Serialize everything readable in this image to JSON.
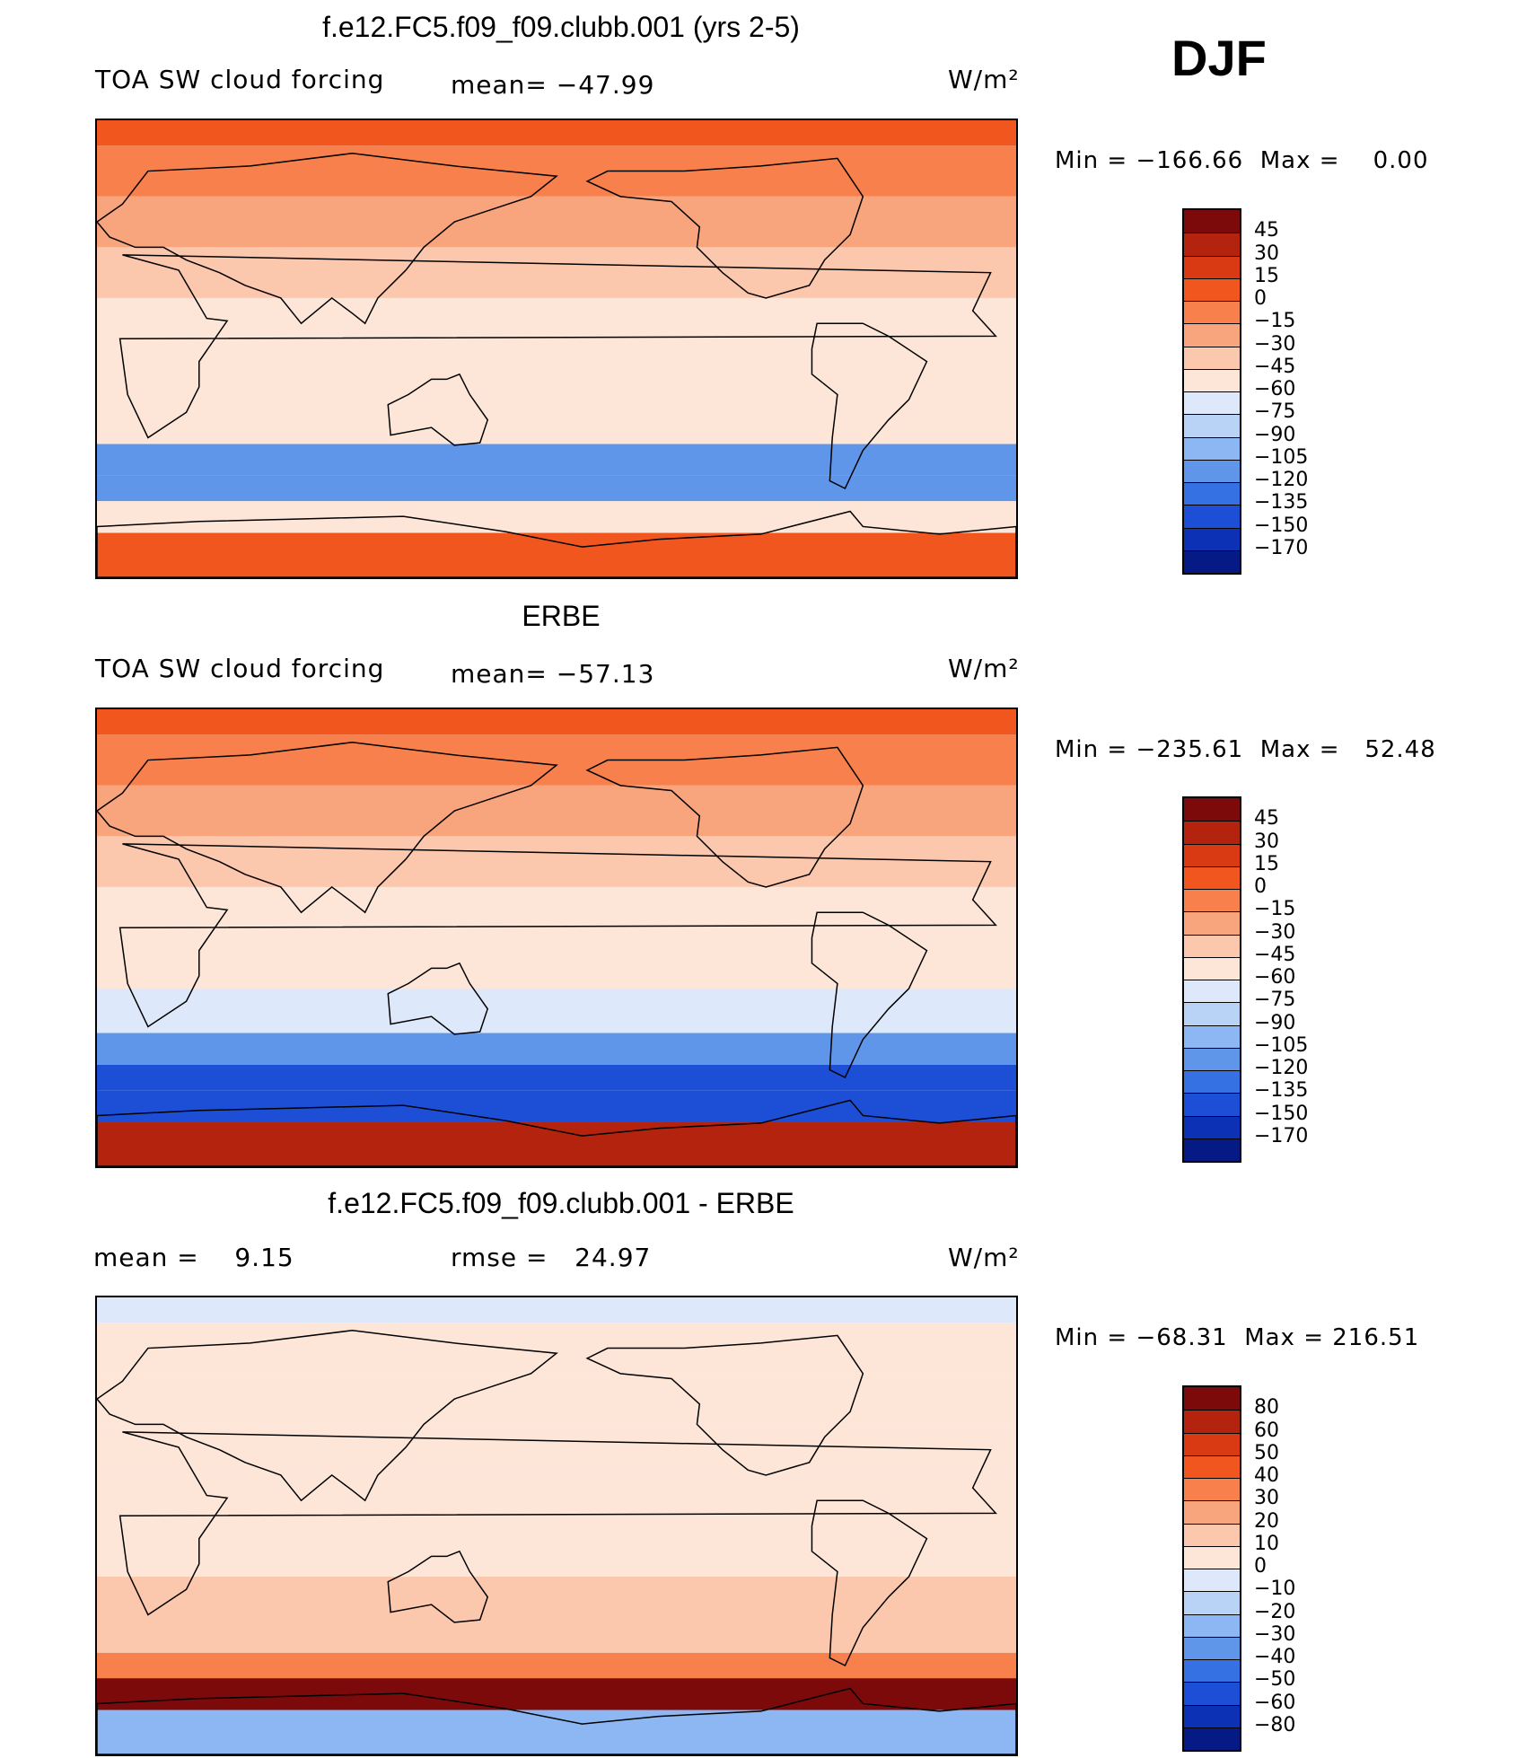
{
  "season": "DJF",
  "panels": [
    {
      "title": "f.e12.FC5.f09_f09.clubb.001 (yrs 2-5)",
      "left_label": "TOA SW cloud forcing",
      "mid_label": "mean= −47.99",
      "units": "W/m²",
      "min_max": "Min = −166.66  Max =    0.00"
    },
    {
      "title": "ERBE",
      "left_label": "TOA SW cloud forcing",
      "mid_label": "mean= −57.13",
      "units": "W/m²",
      "min_max": "Min = −235.61  Max =   52.48"
    },
    {
      "title": "f.e12.FC5.f09_f09.clubb.001 - ERBE",
      "left_label": "mean =    9.15",
      "mid_label": "rmse =   24.97",
      "units": "W/m²",
      "min_max": "Min = −68.31  Max = 216.51"
    }
  ],
  "colorbars": {
    "abs": {
      "labels": [
        "45",
        "30",
        "15",
        "0",
        "−15",
        "−30",
        "−45",
        "−60",
        "−75",
        "−90",
        "−105",
        "−120",
        "−135",
        "−150",
        "−170"
      ],
      "colors": [
        "#7d0a0a",
        "#b3230d",
        "#d93a14",
        "#f2561f",
        "#f7804d",
        "#f8a47d",
        "#fbc7ad",
        "#fde6d8",
        "#dde9fa",
        "#b9d3f6",
        "#8db7f2",
        "#5f96ea",
        "#3571e3",
        "#1d4fd6",
        "#0d31b5",
        "#061a86"
      ]
    },
    "diff": {
      "labels": [
        "80",
        "60",
        "50",
        "40",
        "30",
        "20",
        "10",
        "0",
        "−10",
        "−20",
        "−30",
        "−40",
        "−50",
        "−60",
        "−80"
      ],
      "colors": [
        "#7d0a0a",
        "#b3230d",
        "#d93a14",
        "#f2561f",
        "#f7804d",
        "#f8a47d",
        "#fbc7ad",
        "#fde6d8",
        "#dde9fa",
        "#b9d3f6",
        "#8db7f2",
        "#5f96ea",
        "#3571e3",
        "#1d4fd6",
        "#0d31b5",
        "#061a86"
      ]
    }
  },
  "chart_data": [
    {
      "type": "heatmap",
      "title": "f.e12.FC5.f09_f09.clubb.001 (yrs 2-5)",
      "variable": "TOA SW cloud forcing",
      "units": "W/m²",
      "mean": -47.99,
      "min": -166.66,
      "max": 0.0,
      "levels": [
        45,
        30,
        15,
        0,
        -15,
        -30,
        -45,
        -60,
        -75,
        -90,
        -105,
        -120,
        -135,
        -150,
        -170
      ],
      "zonal_mean_by_lat": {
        "lat": [
          90,
          70,
          50,
          30,
          10,
          -10,
          -30,
          -45,
          -55,
          -65,
          -80
        ],
        "value": [
          0,
          -10,
          -25,
          -35,
          -50,
          -55,
          -50,
          -110,
          -120,
          -60,
          0
        ]
      }
    },
    {
      "type": "heatmap",
      "title": "ERBE",
      "variable": "TOA SW cloud forcing",
      "units": "W/m²",
      "mean": -57.13,
      "min": -235.61,
      "max": 52.48,
      "levels": [
        45,
        30,
        15,
        0,
        -15,
        -30,
        -45,
        -60,
        -75,
        -90,
        -105,
        -120,
        -135,
        -150,
        -170
      ],
      "zonal_mean_by_lat": {
        "lat": [
          90,
          70,
          50,
          30,
          10,
          -10,
          -30,
          -45,
          -55,
          -65,
          -80
        ],
        "value": [
          10,
          -10,
          -30,
          -40,
          -55,
          -60,
          -65,
          -120,
          -150,
          -140,
          30
        ]
      }
    },
    {
      "type": "heatmap",
      "title": "f.e12.FC5.f09_f09.clubb.001 - ERBE",
      "units": "W/m²",
      "mean": 9.15,
      "rmse": 24.97,
      "min": -68.31,
      "max": 216.51,
      "levels": [
        80,
        60,
        50,
        40,
        30,
        20,
        10,
        0,
        -10,
        -20,
        -30,
        -40,
        -50,
        -60,
        -80
      ],
      "zonal_mean_by_lat": {
        "lat": [
          90,
          70,
          50,
          30,
          10,
          -10,
          -30,
          -45,
          -55,
          -65,
          -80
        ],
        "value": [
          -5,
          0,
          5,
          5,
          5,
          5,
          15,
          10,
          30,
          80,
          -30
        ]
      }
    }
  ]
}
